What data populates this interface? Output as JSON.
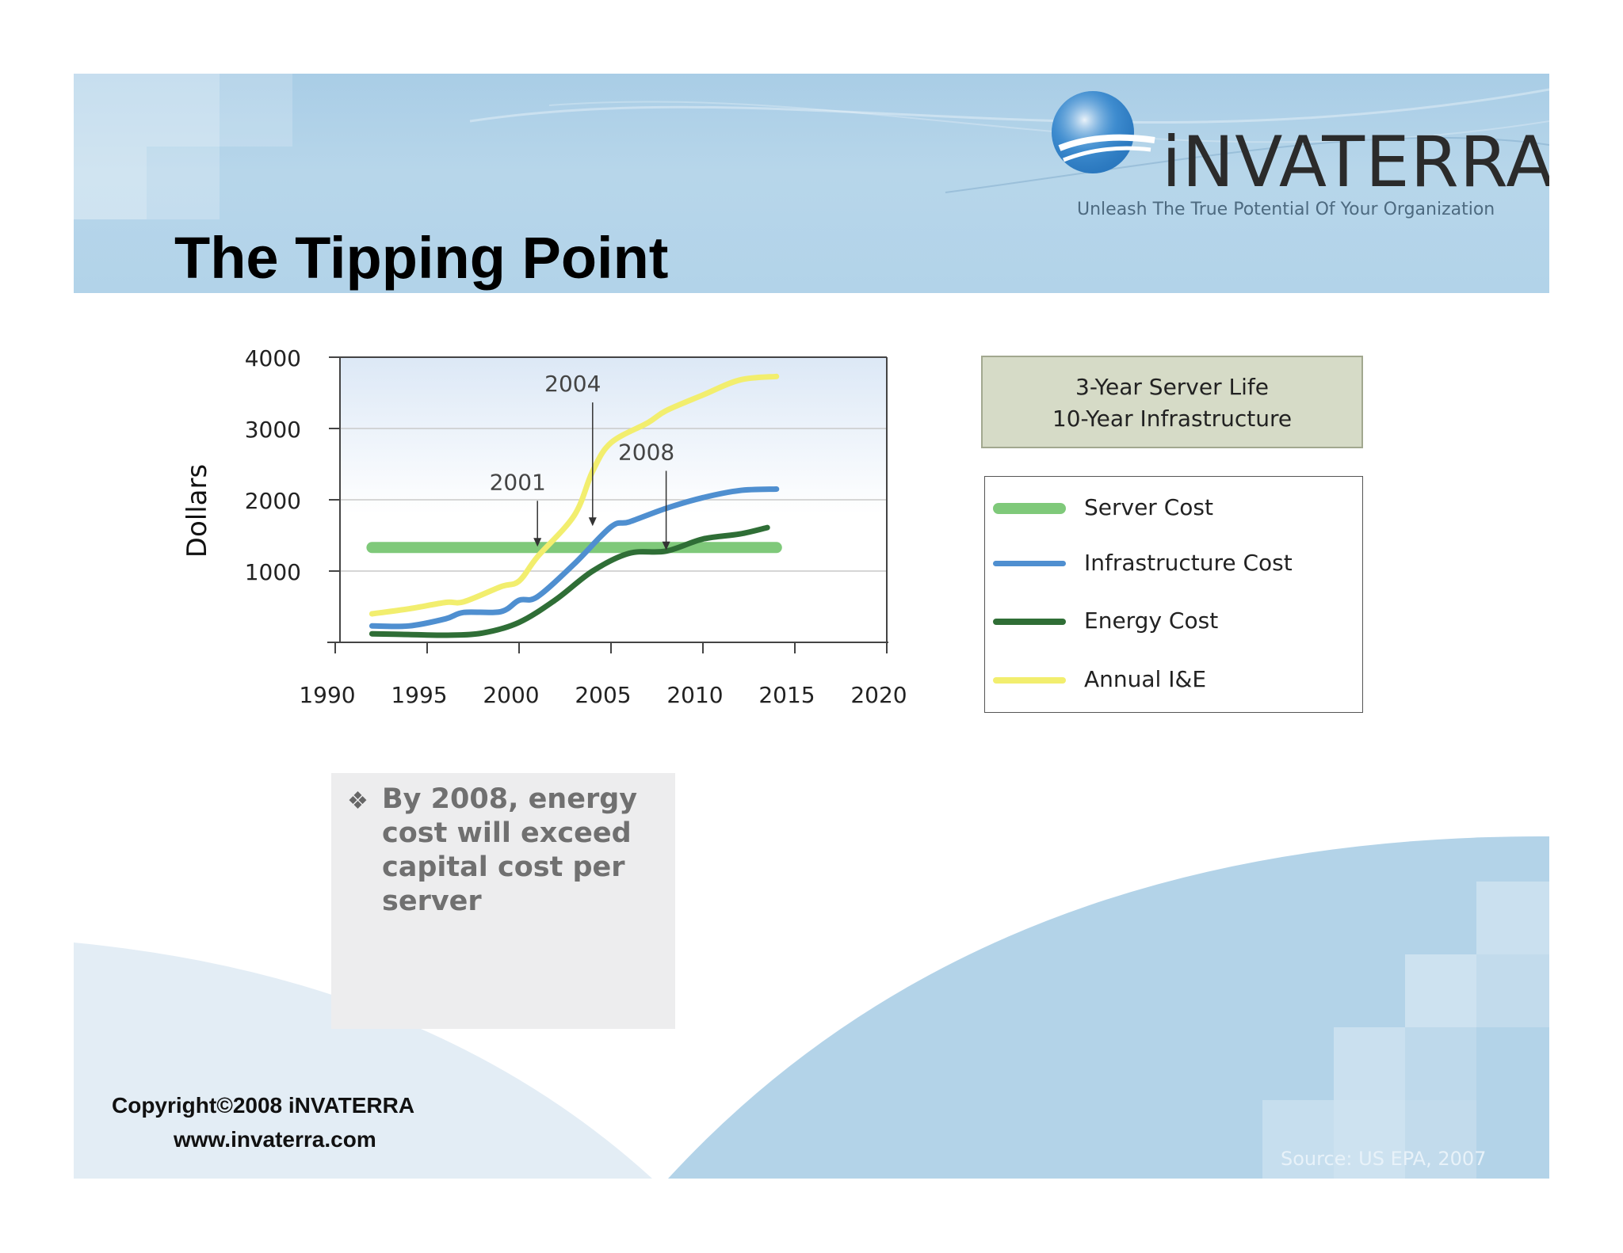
{
  "slide": {
    "title": "The Tipping Point",
    "logo": {
      "name": "iNVATERRA",
      "tagline": "Unleash The True Potential Of Your Organization"
    },
    "note_box": {
      "line1": "3-Year Server Life",
      "line2": "10-Year Infrastructure"
    },
    "bullet": "By 2008, energy cost will exceed capital cost per server",
    "copyright": "Copyright©2008 iNVATERRA",
    "website": "www.invaterra.com",
    "source": "Source:  US EPA, 2007",
    "colors": {
      "banner": "#b2d3e9",
      "accent_blue": "#a9cde6"
    }
  },
  "chart_data": {
    "type": "line",
    "title": "",
    "xlabel": "",
    "ylabel": "Dollars",
    "xlim": [
      1990,
      2020
    ],
    "ylim": [
      0,
      4000
    ],
    "x_ticks": [
      1990,
      1995,
      2000,
      2005,
      2010,
      2015,
      2020
    ],
    "y_ticks": [
      1000,
      2000,
      3000,
      4000
    ],
    "grid": true,
    "legend_position": "right",
    "series": [
      {
        "name": "Server Cost",
        "color": "#7fc97a",
        "width": 14,
        "x": [
          1992,
          2014
        ],
        "y": [
          1330,
          1330
        ]
      },
      {
        "name": "Infrastructure Cost",
        "color": "#4f8fd0",
        "width": 7,
        "x": [
          1992,
          1994,
          1996,
          1997,
          1999,
          2000,
          2001,
          2003,
          2005,
          2006,
          2008,
          2010,
          2012,
          2014
        ],
        "y": [
          230,
          230,
          330,
          420,
          430,
          590,
          640,
          1100,
          1620,
          1690,
          1880,
          2030,
          2130,
          2150
        ]
      },
      {
        "name": "Energy Cost",
        "color": "#2f6e36",
        "width": 7,
        "x": [
          1992,
          1994,
          1996,
          1998,
          2000,
          2002,
          2004,
          2006,
          2008,
          2010,
          2012,
          2013.5
        ],
        "y": [
          120,
          110,
          100,
          130,
          280,
          600,
          1000,
          1250,
          1280,
          1450,
          1520,
          1610
        ]
      },
      {
        "name": "Annual I&E",
        "color": "#f2ee6e",
        "width": 7,
        "x": [
          1992,
          1994,
          1996,
          1997,
          1999,
          2000,
          2001,
          2003,
          2004,
          2005,
          2007,
          2008,
          2010,
          2012,
          2014
        ],
        "y": [
          400,
          470,
          560,
          570,
          780,
          860,
          1200,
          1780,
          2400,
          2800,
          3080,
          3250,
          3470,
          3680,
          3730
        ]
      }
    ],
    "annotations": [
      {
        "label": "2001",
        "x": 2001,
        "y": 1330
      },
      {
        "label": "2004",
        "x": 2004,
        "y": 1620
      },
      {
        "label": "2008",
        "x": 2008,
        "y": 1280
      }
    ]
  }
}
